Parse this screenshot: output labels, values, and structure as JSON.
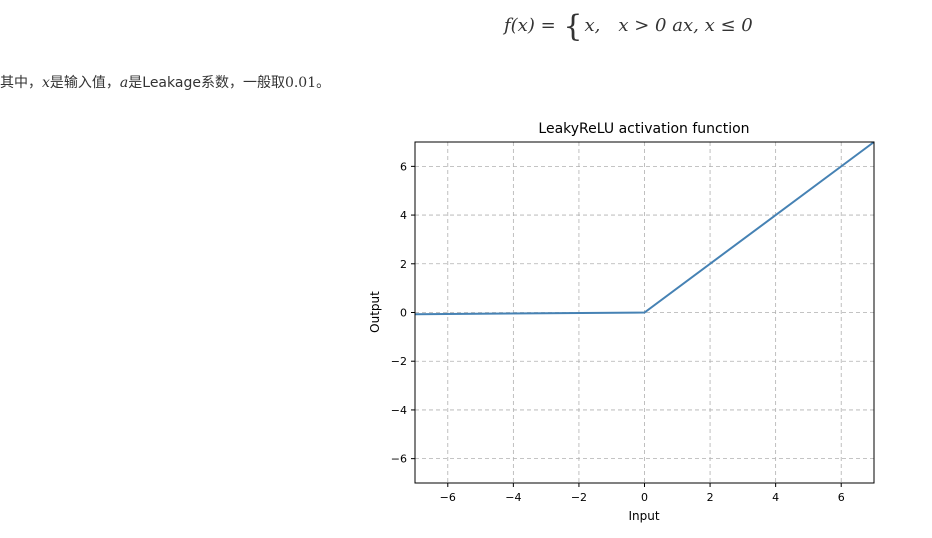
{
  "formula": {
    "lhs": "f(x) =",
    "brace": "{",
    "case1": "x,",
    "cond1": "x > 0",
    "case2": "ax,",
    "cond2": "x ≤ 0"
  },
  "description": {
    "part1": "其中，",
    "var_x": "x",
    "part2": "是输入值，",
    "var_a": "a",
    "part3": "是Leakage系数，一般取",
    "value": "0.01",
    "part4": "。"
  },
  "chart_data": {
    "type": "line",
    "title": "LeakyReLU activation function",
    "xlabel": "Input",
    "ylabel": "Output",
    "xlim": [
      -7,
      7
    ],
    "ylim": [
      -7,
      7
    ],
    "xticks": [
      -6,
      -4,
      -2,
      0,
      2,
      4,
      6
    ],
    "yticks": [
      -6,
      -4,
      -2,
      0,
      2,
      4,
      6
    ],
    "xtick_labels": [
      "−6",
      "−4",
      "−2",
      "0",
      "2",
      "4",
      "6"
    ],
    "ytick_labels": [
      "−6",
      "−4",
      "−2",
      "0",
      "2",
      "4",
      "6"
    ],
    "grid": true,
    "series": [
      {
        "color": "#4682b4",
        "x": [
          -7,
          0,
          7
        ],
        "y": [
          -0.07,
          0,
          7
        ]
      }
    ]
  }
}
